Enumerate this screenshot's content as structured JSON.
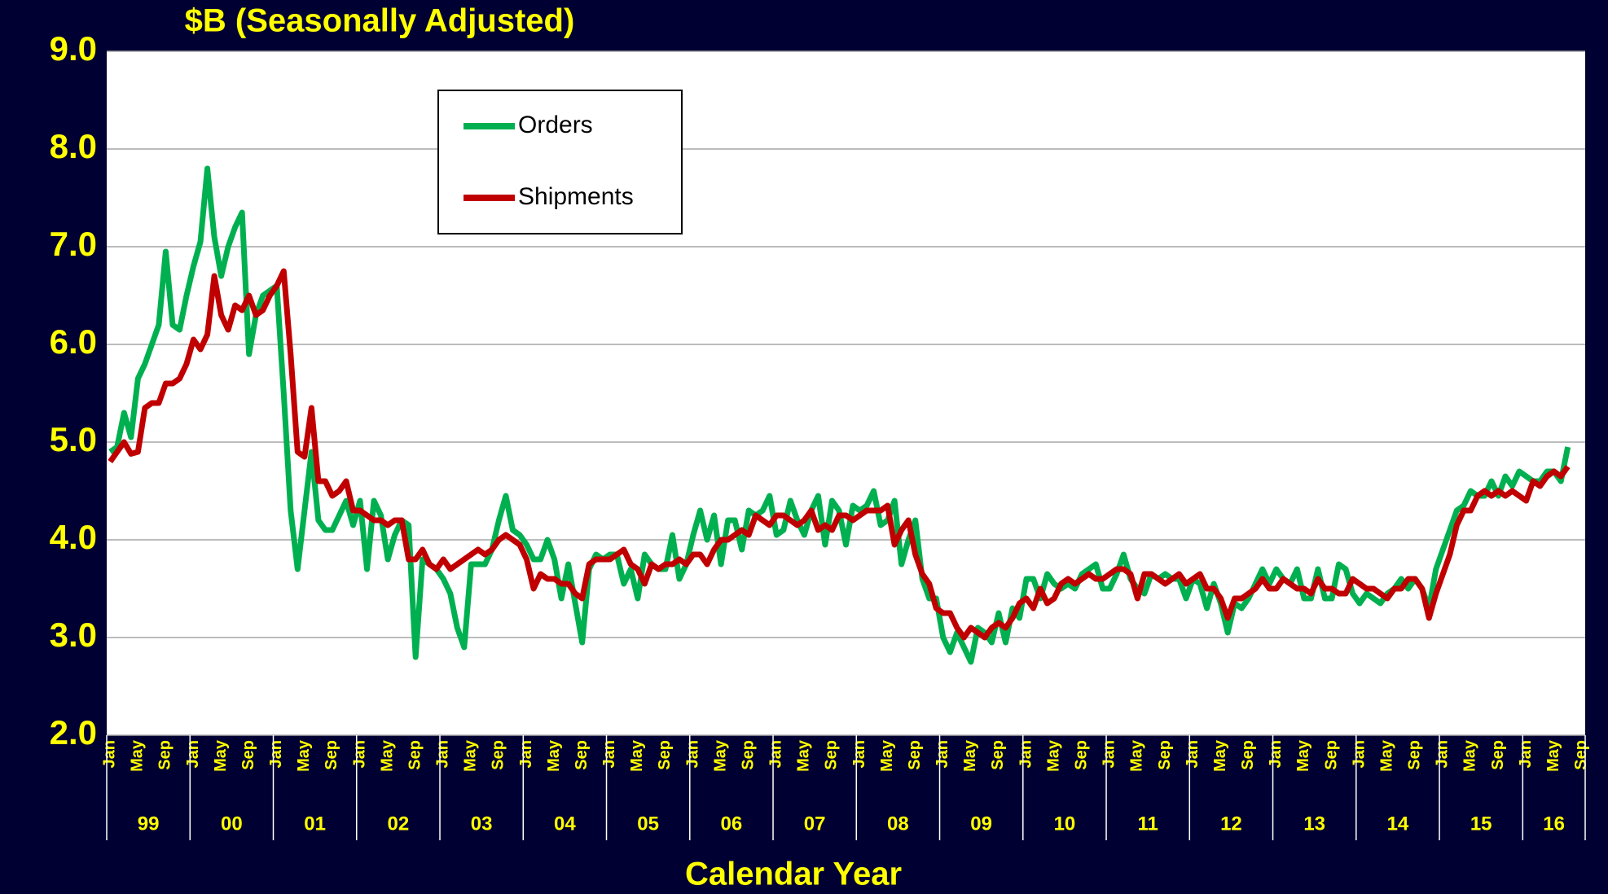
{
  "chart_data": {
    "type": "line",
    "title": "$B (Seasonally Adjusted)",
    "x_label": "Calendar Year",
    "categories": [
      "Jan",
      null,
      null,
      null,
      "May",
      null,
      null,
      null,
      "Sep",
      null,
      null,
      null,
      "Jan",
      null,
      null,
      null,
      "May",
      null,
      null,
      null,
      "Sep",
      null,
      null,
      null,
      "Jan",
      null,
      null,
      null,
      "May",
      null,
      null,
      null,
      "Sep",
      null,
      null,
      null,
      "Jan",
      null,
      null,
      null,
      "May",
      null,
      null,
      null,
      "Sep",
      null,
      null,
      null,
      "Jan",
      null,
      null,
      null,
      "May",
      null,
      null,
      null,
      "Sep",
      null,
      null,
      null,
      "Jan",
      null,
      null,
      null,
      "May",
      null,
      null,
      null,
      "Sep",
      null,
      null,
      null,
      "Jan",
      null,
      null,
      null,
      "May",
      null,
      null,
      null,
      "Sep",
      null,
      null,
      null,
      "Jan",
      null,
      null,
      null,
      "May",
      null,
      null,
      null,
      "Sep",
      null,
      null,
      null,
      "Jan",
      null,
      null,
      null,
      "May",
      null,
      null,
      null,
      "Sep",
      null,
      null,
      null,
      "Jan",
      null,
      null,
      null,
      "May",
      null,
      null,
      null,
      "Sep",
      null,
      null,
      null,
      "Jan",
      null,
      null,
      null,
      "May",
      null,
      null,
      null,
      "Sep",
      null,
      null,
      null,
      "Jan",
      null,
      null,
      null,
      "May",
      null,
      null,
      null,
      "Sep",
      null,
      null,
      null,
      "Jan",
      null,
      null,
      null,
      "May",
      null,
      null,
      null,
      "Sep",
      null,
      null,
      null,
      "Jan",
      null,
      null,
      null,
      "May",
      null,
      null,
      null,
      "Sep",
      null,
      null,
      null,
      "Jan",
      null,
      null,
      null,
      "May",
      null,
      null,
      null,
      "Sep",
      null,
      null,
      null,
      "Jan",
      null,
      null,
      null,
      "May",
      null,
      null,
      null,
      "Sep",
      null,
      null,
      null,
      "Jan",
      null,
      null,
      null,
      "May",
      null,
      null,
      null,
      "Sep",
      null,
      null,
      null,
      "Jan",
      null,
      null,
      null,
      "May",
      null,
      null,
      null,
      "Sep"
    ],
    "year_labels": [
      "99",
      "00",
      "01",
      "02",
      "03",
      "04",
      "05",
      "06",
      "07",
      "08",
      "09",
      "10",
      "11",
      "12",
      "13",
      "14",
      "15",
      "16"
    ],
    "series": [
      {
        "name": "Orders",
        "color": "#00b050",
        "values": [
          4.9,
          4.95,
          5.3,
          5.05,
          5.65,
          5.8,
          6.0,
          6.2,
          6.95,
          6.2,
          6.15,
          6.5,
          6.8,
          7.05,
          7.8,
          7.1,
          6.7,
          7.0,
          7.2,
          7.35,
          5.9,
          6.3,
          6.5,
          6.55,
          6.6,
          5.5,
          4.3,
          3.7,
          4.3,
          4.9,
          4.2,
          4.1,
          4.1,
          4.25,
          4.4,
          4.15,
          4.4,
          3.7,
          4.4,
          4.25,
          3.8,
          4.05,
          4.2,
          4.15,
          2.8,
          3.8,
          3.75,
          3.7,
          3.6,
          3.45,
          3.1,
          2.9,
          3.75,
          3.75,
          3.75,
          3.9,
          4.2,
          4.45,
          4.1,
          4.05,
          3.95,
          3.8,
          3.8,
          4.0,
          3.8,
          3.4,
          3.75,
          3.35,
          2.95,
          3.7,
          3.85,
          3.8,
          3.85,
          3.85,
          3.55,
          3.7,
          3.4,
          3.85,
          3.75,
          3.7,
          3.7,
          4.05,
          3.6,
          3.75,
          4.05,
          4.3,
          4.0,
          4.25,
          3.75,
          4.2,
          4.2,
          3.9,
          4.3,
          4.25,
          4.3,
          4.45,
          4.05,
          4.1,
          4.4,
          4.2,
          4.05,
          4.3,
          4.45,
          3.95,
          4.4,
          4.3,
          3.95,
          4.35,
          4.3,
          4.35,
          4.5,
          4.15,
          4.2,
          4.4,
          3.75,
          4.0,
          4.2,
          3.6,
          3.4,
          3.4,
          3.0,
          2.85,
          3.05,
          2.9,
          2.75,
          3.1,
          3.05,
          2.95,
          3.25,
          2.95,
          3.3,
          3.2,
          3.6,
          3.6,
          3.4,
          3.65,
          3.55,
          3.5,
          3.55,
          3.5,
          3.65,
          3.7,
          3.75,
          3.5,
          3.5,
          3.65,
          3.85,
          3.6,
          3.5,
          3.45,
          3.65,
          3.6,
          3.65,
          3.6,
          3.6,
          3.4,
          3.6,
          3.55,
          3.3,
          3.55,
          3.35,
          3.05,
          3.35,
          3.3,
          3.4,
          3.55,
          3.7,
          3.55,
          3.7,
          3.6,
          3.55,
          3.7,
          3.4,
          3.4,
          3.7,
          3.4,
          3.4,
          3.75,
          3.7,
          3.45,
          3.35,
          3.45,
          3.4,
          3.35,
          3.45,
          3.5,
          3.6,
          3.5,
          3.6,
          3.5,
          3.3,
          3.7,
          3.9,
          4.1,
          4.3,
          4.35,
          4.5,
          4.45,
          4.45,
          4.6,
          4.45,
          4.65,
          4.55,
          4.7,
          4.65,
          4.6,
          4.6,
          4.7,
          4.7,
          4.6,
          4.95,
          null,
          null
        ]
      },
      {
        "name": "Shipments",
        "color": "#c00000",
        "values": [
          4.8,
          4.9,
          5.0,
          4.88,
          4.9,
          5.35,
          5.4,
          5.4,
          5.6,
          5.6,
          5.65,
          5.8,
          6.05,
          5.95,
          6.1,
          6.7,
          6.3,
          6.15,
          6.4,
          6.35,
          6.5,
          6.3,
          6.35,
          6.5,
          6.6,
          6.75,
          5.9,
          4.9,
          4.85,
          5.35,
          4.6,
          4.6,
          4.45,
          4.5,
          4.6,
          4.3,
          4.3,
          4.25,
          4.2,
          4.2,
          4.15,
          4.2,
          4.2,
          3.8,
          3.8,
          3.9,
          3.75,
          3.7,
          3.8,
          3.7,
          3.75,
          3.8,
          3.85,
          3.9,
          3.85,
          3.9,
          4.0,
          4.05,
          4.0,
          3.95,
          3.8,
          3.5,
          3.65,
          3.6,
          3.6,
          3.55,
          3.55,
          3.45,
          3.4,
          3.75,
          3.8,
          3.8,
          3.8,
          3.85,
          3.9,
          3.75,
          3.7,
          3.55,
          3.75,
          3.7,
          3.75,
          3.75,
          3.8,
          3.75,
          3.85,
          3.85,
          3.75,
          3.9,
          4.0,
          4.0,
          4.05,
          4.1,
          4.05,
          4.25,
          4.2,
          4.15,
          4.25,
          4.25,
          4.2,
          4.15,
          4.2,
          4.3,
          4.1,
          4.15,
          4.1,
          4.25,
          4.25,
          4.2,
          4.25,
          4.3,
          4.3,
          4.3,
          4.35,
          3.95,
          4.1,
          4.2,
          3.85,
          3.65,
          3.55,
          3.3,
          3.25,
          3.25,
          3.1,
          3.0,
          3.1,
          3.05,
          3.0,
          3.1,
          3.15,
          3.1,
          3.2,
          3.35,
          3.4,
          3.3,
          3.5,
          3.35,
          3.4,
          3.55,
          3.6,
          3.55,
          3.6,
          3.65,
          3.6,
          3.6,
          3.65,
          3.7,
          3.7,
          3.65,
          3.4,
          3.65,
          3.65,
          3.6,
          3.55,
          3.6,
          3.65,
          3.55,
          3.6,
          3.65,
          3.5,
          3.5,
          3.4,
          3.2,
          3.4,
          3.4,
          3.45,
          3.5,
          3.6,
          3.5,
          3.5,
          3.6,
          3.55,
          3.5,
          3.5,
          3.45,
          3.6,
          3.5,
          3.5,
          3.45,
          3.45,
          3.6,
          3.55,
          3.5,
          3.5,
          3.45,
          3.4,
          3.5,
          3.5,
          3.6,
          3.6,
          3.5,
          3.2,
          3.45,
          3.65,
          3.85,
          4.15,
          4.3,
          4.3,
          4.45,
          4.5,
          4.45,
          4.5,
          4.45,
          4.5,
          4.45,
          4.4,
          4.6,
          4.55,
          4.65,
          4.7,
          4.65,
          4.75,
          null,
          null
        ]
      }
    ],
    "ylim": [
      2,
      9
    ],
    "yticks": [
      {
        "value": 2,
        "label": "2.0"
      },
      {
        "value": 3,
        "label": "3.0"
      },
      {
        "value": 4,
        "label": "4.0"
      },
      {
        "value": 5,
        "label": "5.0"
      },
      {
        "value": 6,
        "label": "6.0"
      },
      {
        "value": 7,
        "label": "7.0"
      },
      {
        "value": 8,
        "label": "8.0"
      },
      {
        "value": 9,
        "label": "9.0"
      }
    ],
    "grid": true
  }
}
